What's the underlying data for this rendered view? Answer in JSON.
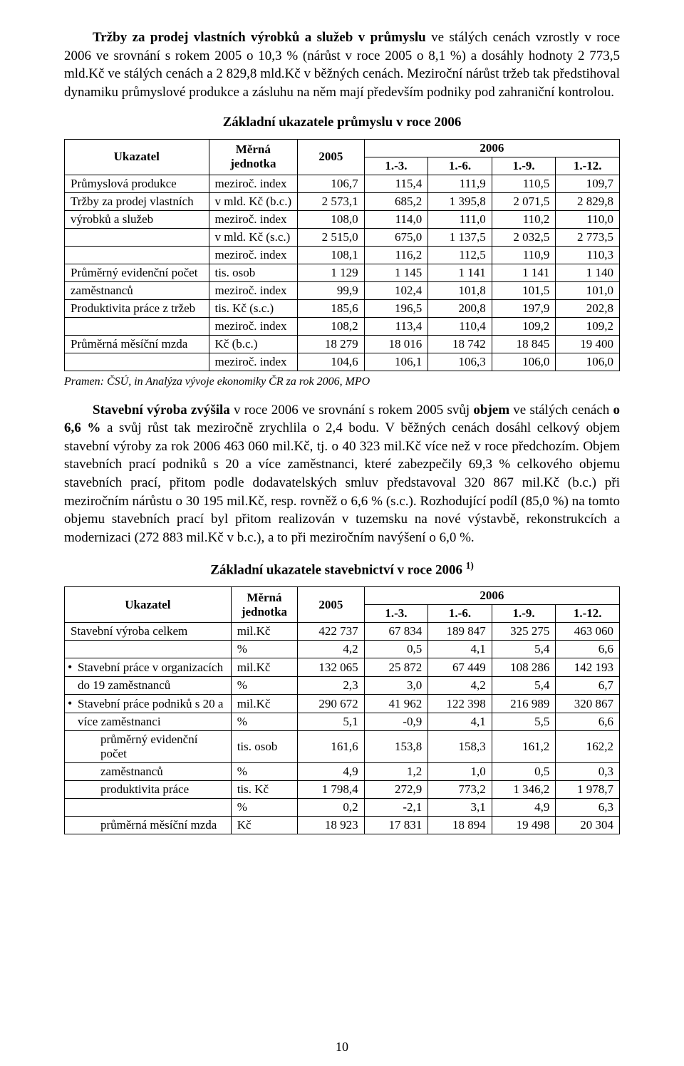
{
  "para1_html": "<b>Tržby za prodej vlastních výrobků a služeb v průmyslu</b> ve stálých cenách vzrostly v roce 2006 ve srovnání s rokem 2005 o 10,3 % (nárůst v roce 2005 o 8,1 %) a dosáhly hodnoty 2 773,5 mld.Kč ve stálých cenách a 2 829,8 mld.Kč v běžných cenách. Meziroční nárůst tržeb tak předstihoval dynamiku průmyslové produkce a zásluhu na něm mají především podniky pod zahraniční kontrolou.",
  "table1": {
    "title": "Základní ukazatele průmyslu v roce 2006",
    "header_ukazatel": "Ukazatel",
    "header_unit": "Měrná jednotka",
    "header_2005": "2005",
    "header_2006": "2006",
    "quarters": [
      "1.-3.",
      "1.-6.",
      "1.-9.",
      "1.-12."
    ],
    "rows": [
      {
        "label": "Průmyslová produkce",
        "unit": "meziroč. index",
        "v2005": "106,7",
        "q": [
          "115,4",
          "111,9",
          "110,5",
          "109,7"
        ]
      },
      {
        "label": "Tržby za prodej vlastních",
        "unit": "v mld. Kč (b.c.)",
        "v2005": "2 573,1",
        "q": [
          "685,2",
          "1 395,8",
          "2 071,5",
          "2 829,8"
        ]
      },
      {
        "label": "výrobků a služeb",
        "unit": "meziroč. index",
        "v2005": "108,0",
        "q": [
          "114,0",
          "111,0",
          "110,2",
          "110,0"
        ]
      },
      {
        "label": "",
        "unit": "v mld. Kč (s.c.)",
        "v2005": "2 515,0",
        "q": [
          "675,0",
          "1 137,5",
          "2 032,5",
          "2 773,5"
        ]
      },
      {
        "label": "",
        "unit": "meziroč. index",
        "v2005": "108,1",
        "q": [
          "116,2",
          "112,5",
          "110,9",
          "110,3"
        ]
      },
      {
        "label": "Průměrný evidenční počet",
        "unit": "tis. osob",
        "v2005": "1 129",
        "q": [
          "1 145",
          "1 141",
          "1 141",
          "1 140"
        ]
      },
      {
        "label": "zaměstnanců",
        "unit": "meziroč. index",
        "v2005": "99,9",
        "q": [
          "102,4",
          "101,8",
          "101,5",
          "101,0"
        ]
      },
      {
        "label": "Produktivita práce z tržeb",
        "unit": "tis. Kč (s.c.)",
        "v2005": "185,6",
        "q": [
          "196,5",
          "200,8",
          "197,9",
          "202,8"
        ]
      },
      {
        "label": "",
        "unit": "meziroč. index",
        "v2005": "108,2",
        "q": [
          "113,4",
          "110,4",
          "109,2",
          "109,2"
        ]
      },
      {
        "label": "Průměrná měsíční mzda",
        "unit": "Kč (b.c.)",
        "v2005": "18 279",
        "q": [
          "18 016",
          "18 742",
          "18 845",
          "19 400"
        ]
      },
      {
        "label": "",
        "unit": "meziroč. index",
        "v2005": "104,6",
        "q": [
          "106,1",
          "106,3",
          "106,0",
          "106,0"
        ]
      }
    ],
    "source": "Pramen: ČSÚ, in Analýza vývoje ekonomiky ČR za rok 2006, MPO"
  },
  "para2_html": "<b>Stavební výroba zvýšila</b> v roce 2006 ve srovnání s rokem 2005 svůj <b>objem</b> ve stálých cenách <b>o 6,6 %</b> a svůj růst tak meziročně zrychlila o 2,4 bodu. V běžných cenách dosáhl celkový objem stavební výroby za rok 2006 463 060 mil.Kč, tj. o 40 323 mil.Kč více než v roce předchozím. Objem stavebních prací podniků s 20 a více zaměstnanci, které zabezpečily 69,3 % celkového objemu stavebních prací, přitom podle dodavatelských smluv představoval 320 867 mil.Kč (b.c.) při meziročním nárůstu o 30 195 mil.Kč, resp. rovněž o 6,6 % (s.c.). Rozhodující podíl (85,0 %) na tomto objemu stavebních prací byl přitom realizován v tuzemsku na nové výstavbě, rekonstrukcích a modernizaci (272 883 mil.Kč v b.c.), a to při meziročním navýšení o 6,0 %.",
  "table2": {
    "title_html": "Základní ukazatele stavebnictví v roce 2006 <sup>1)</sup>",
    "header_ukazatel": "Ukazatel",
    "header_unit": "Měrná jednotka",
    "header_2005": "2005",
    "header_2006": "2006",
    "quarters": [
      "1.-3.",
      "1.-6.",
      "1.-9.",
      "1.-12."
    ],
    "rows": [
      {
        "label": "Stavební výroba celkem",
        "indent": 0,
        "bullet": false,
        "pairs": [
          {
            "unit": "mil.Kč",
            "v2005": "422 737",
            "q": [
              "67 834",
              "189 847",
              "325 275",
              "463 060"
            ]
          },
          {
            "unit": "%",
            "v2005": "4,2",
            "q": [
              "0,5",
              "4,1",
              "5,4",
              "6,6"
            ]
          }
        ]
      },
      {
        "label": "Stavební práce v organizacích do 19 zaměstnanců",
        "label2": "do 19 zaměstnanců",
        "label1": "Stavební práce v organizacích",
        "indent": 1,
        "bullet": true,
        "pairs": [
          {
            "unit": "mil.Kč",
            "v2005": "132 065",
            "q": [
              "25 872",
              "67 449",
              "108 286",
              "142 193"
            ]
          },
          {
            "unit": "%",
            "v2005": "2,3",
            "q": [
              "3,0",
              "4,2",
              "5,4",
              "6,7"
            ]
          }
        ]
      },
      {
        "label1": "Stavební práce podniků s 20 a",
        "label2": "více zaměstnanci",
        "indent": 1,
        "bullet": true,
        "pairs": [
          {
            "unit": "mil.Kč",
            "v2005": "290 672",
            "q": [
              "41 962",
              "122 398",
              "216 989",
              "320 867"
            ]
          },
          {
            "unit": "%",
            "v2005": "5,1",
            "q": [
              "-0,9",
              "4,1",
              "5,5",
              "6,6"
            ]
          }
        ]
      },
      {
        "label1": "průměrný evidenční počet",
        "label2": "zaměstnanců",
        "indent": 2,
        "bullet": false,
        "pairs": [
          {
            "unit": "tis. osob",
            "v2005": "161,6",
            "q": [
              "153,8",
              "158,3",
              "161,2",
              "162,2"
            ]
          },
          {
            "unit": "%",
            "v2005": "4,9",
            "q": [
              "1,2",
              "1,0",
              "0,5",
              "0,3"
            ]
          }
        ]
      },
      {
        "label1": "produktivita práce",
        "label2": "",
        "indent": 2,
        "bullet": false,
        "single": true,
        "pairs": [
          {
            "unit": "tis. Kč",
            "v2005": "1 798,4",
            "q": [
              "272,9",
              "773,2",
              "1 346,2",
              "1 978,7"
            ]
          },
          {
            "unit": "%",
            "v2005": "0,2",
            "q": [
              "-2,1",
              "3,1",
              "4,9",
              "6,3"
            ]
          }
        ]
      },
      {
        "label1": "průměrná měsíční mzda",
        "indent": 2,
        "bullet": false,
        "oneRow": true,
        "pairs": [
          {
            "unit": "Kč",
            "v2005": "18 923",
            "q": [
              "17 831",
              "18 894",
              "19 498",
              "20 304"
            ]
          }
        ]
      }
    ]
  },
  "page_number": "10"
}
